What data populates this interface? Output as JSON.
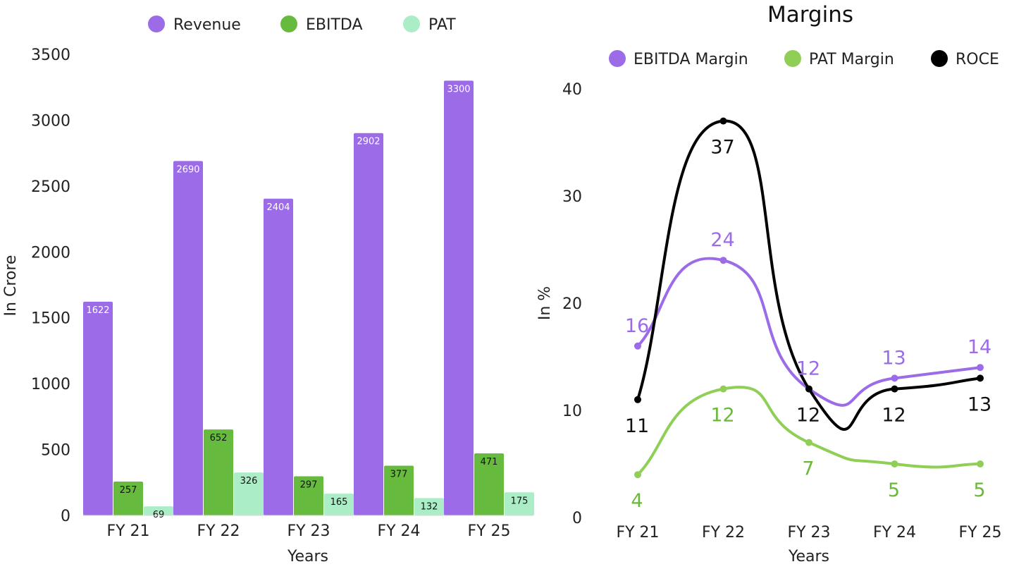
{
  "chart_data": [
    {
      "type": "bar",
      "title": "",
      "xlabel": "Years",
      "ylabel": "In Crore",
      "ylim": [
        0,
        3500
      ],
      "yticks": [
        "0",
        "500",
        "1000",
        "1500",
        "2000",
        "2500",
        "3000",
        "3500"
      ],
      "ytick_values": [
        0,
        500,
        1000,
        1500,
        2000,
        2500,
        3000,
        3500
      ],
      "categories": [
        "FY 21",
        "FY 22",
        "FY 23",
        "FY 24",
        "FY 25"
      ],
      "legend_position": "top",
      "series": [
        {
          "name": "Revenue",
          "color": "#9c6ce8",
          "label_color": "#ffffff",
          "values": [
            1622,
            2690,
            2404,
            2902,
            3300
          ]
        },
        {
          "name": "EBITDA",
          "color": "#66ba3d",
          "label_color": "#111111",
          "values": [
            257,
            652,
            297,
            377,
            471
          ]
        },
        {
          "name": "PAT",
          "color": "#abedc6",
          "label_color": "#111111",
          "values": [
            69,
            326,
            165,
            132,
            175
          ]
        }
      ]
    },
    {
      "type": "line",
      "title": "Margins",
      "xlabel": "Years",
      "ylabel": "In %",
      "ylim": [
        0,
        40
      ],
      "yticks": [
        "0",
        "10",
        "20",
        "30",
        "40"
      ],
      "ytick_values": [
        0,
        10,
        20,
        30,
        40
      ],
      "categories": [
        "FY 21",
        "FY 22",
        "FY 23",
        "FY 24",
        "FY 25"
      ],
      "legend_position": "top",
      "series": [
        {
          "name": "EBITDA Margin",
          "color": "#9c6ce8",
          "label_color": "#9c6ce8",
          "label_position": "above",
          "values": [
            16,
            24,
            12,
            13,
            14
          ]
        },
        {
          "name": "PAT Margin",
          "color": "#8fcf55",
          "label_color": "#6cb83a",
          "label_position": "below",
          "values": [
            4,
            12,
            7,
            5,
            5
          ]
        },
        {
          "name": "ROCE",
          "color": "#000000",
          "label_color": "#111111",
          "label_position": "below",
          "values": [
            11,
            37,
            12,
            12,
            13
          ]
        }
      ]
    }
  ]
}
